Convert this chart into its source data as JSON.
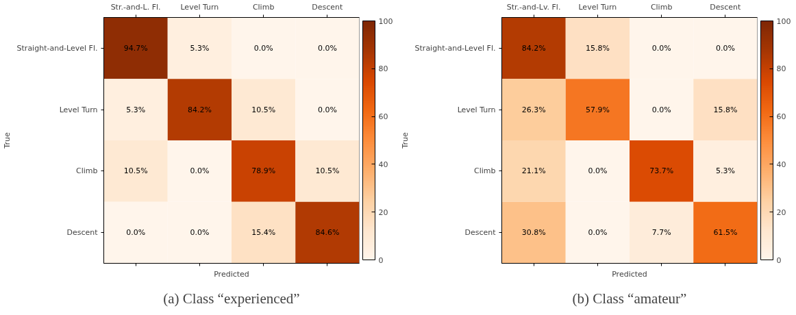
{
  "chart_data": [
    {
      "type": "heatmap",
      "xlabel": "Predicted",
      "ylabel": "True",
      "categories": [
        "Str.-and-L. Fl.",
        "Level Turn",
        "Climb",
        "Descent"
      ],
      "y_categories": [
        "Straight-and-Level Fl.",
        "Level Turn",
        "Climb",
        "Descent"
      ],
      "cells": [
        [
          94.7,
          5.3,
          0.0,
          0.0
        ],
        [
          5.3,
          84.2,
          10.5,
          0.0
        ],
        [
          10.5,
          0.0,
          78.9,
          10.5
        ],
        [
          0.0,
          0.0,
          15.4,
          84.6
        ]
      ],
      "cell_labels": [
        [
          "94.7%",
          "5.3%",
          "0.0%",
          "0.0%"
        ],
        [
          "5.3%",
          "84.2%",
          "10.5%",
          "0.0%"
        ],
        [
          "10.5%",
          "0.0%",
          "78.9%",
          "10.5%"
        ],
        [
          "0.0%",
          "0.0%",
          "15.4%",
          "84.6%"
        ]
      ],
      "clim": [
        0,
        100
      ],
      "cticks": [
        0,
        20,
        40,
        60,
        80,
        100
      ],
      "annotations": [
        "(a) Class “experienced”"
      ]
    },
    {
      "type": "heatmap",
      "xlabel": "Predicted",
      "ylabel": "True",
      "categories": [
        "Str.-and-Lv. Fl.",
        "Level Turn",
        "Climb",
        "Descent"
      ],
      "y_categories": [
        "Straight-and-Level Fl.",
        "Level Turn",
        "Climb",
        "Descent"
      ],
      "cells": [
        [
          84.2,
          15.8,
          0.0,
          0.0
        ],
        [
          26.3,
          57.9,
          0.0,
          15.8
        ],
        [
          21.1,
          0.0,
          73.7,
          5.3
        ],
        [
          30.8,
          0.0,
          7.7,
          61.5
        ]
      ],
      "cell_labels": [
        [
          "84.2%",
          "15.8%",
          "0.0%",
          "0.0%"
        ],
        [
          "26.3%",
          "57.9%",
          "0.0%",
          "15.8%"
        ],
        [
          "21.1%",
          "0.0%",
          "73.7%",
          "5.3%"
        ],
        [
          "30.8%",
          "0.0%",
          "7.7%",
          "61.5%"
        ]
      ],
      "clim": [
        0,
        100
      ],
      "cticks": [
        0,
        20,
        40,
        60,
        80,
        100
      ],
      "annotations": [
        "(b) Class “amateur”"
      ]
    }
  ]
}
